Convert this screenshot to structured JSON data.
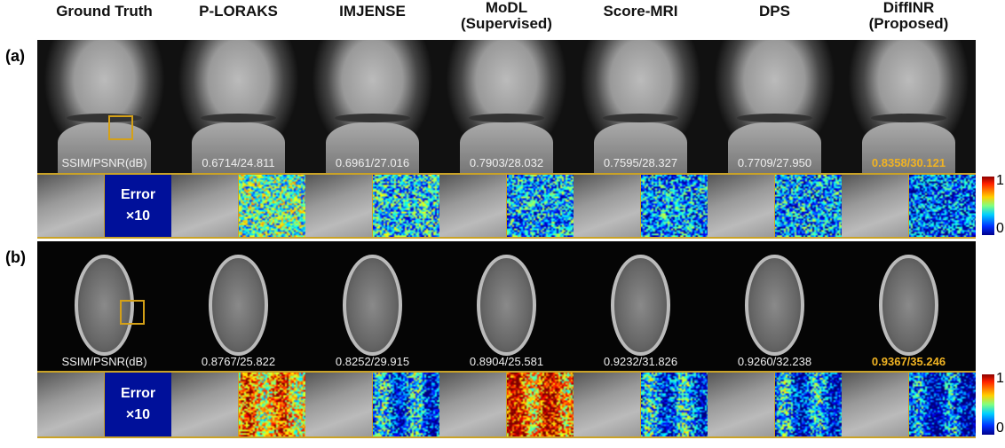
{
  "columns": [
    "Ground Truth",
    "P-LORAKS",
    "IMJENSE",
    "MoDL\n(Supervised)",
    "Score-MRI",
    "DPS",
    "DiffINR\n(Proposed)"
  ],
  "rows": [
    {
      "label": "(a)",
      "metric_label": "SSIM/PSNR(dB)",
      "metrics": [
        "0.6714/24.811",
        "0.6961/27.016",
        "0.7903/28.032",
        "0.7595/28.327",
        "0.7709/27.950",
        "0.8358/30.121"
      ]
    },
    {
      "label": "(b)",
      "metric_label": "SSIM/PSNR(dB)",
      "metrics": [
        "0.8767/25.822",
        "0.8252/29.915",
        "0.8904/25.581",
        "0.9232/31.826",
        "0.9260/32.238",
        "0.9367/35.246"
      ]
    }
  ],
  "error_label": {
    "line1": "Error",
    "line2": "×10"
  },
  "colorbar": {
    "max": "1",
    "min": "0",
    "colormap": "jet"
  },
  "colors": {
    "highlight": "#f0b323",
    "roi": "#d4a017"
  }
}
